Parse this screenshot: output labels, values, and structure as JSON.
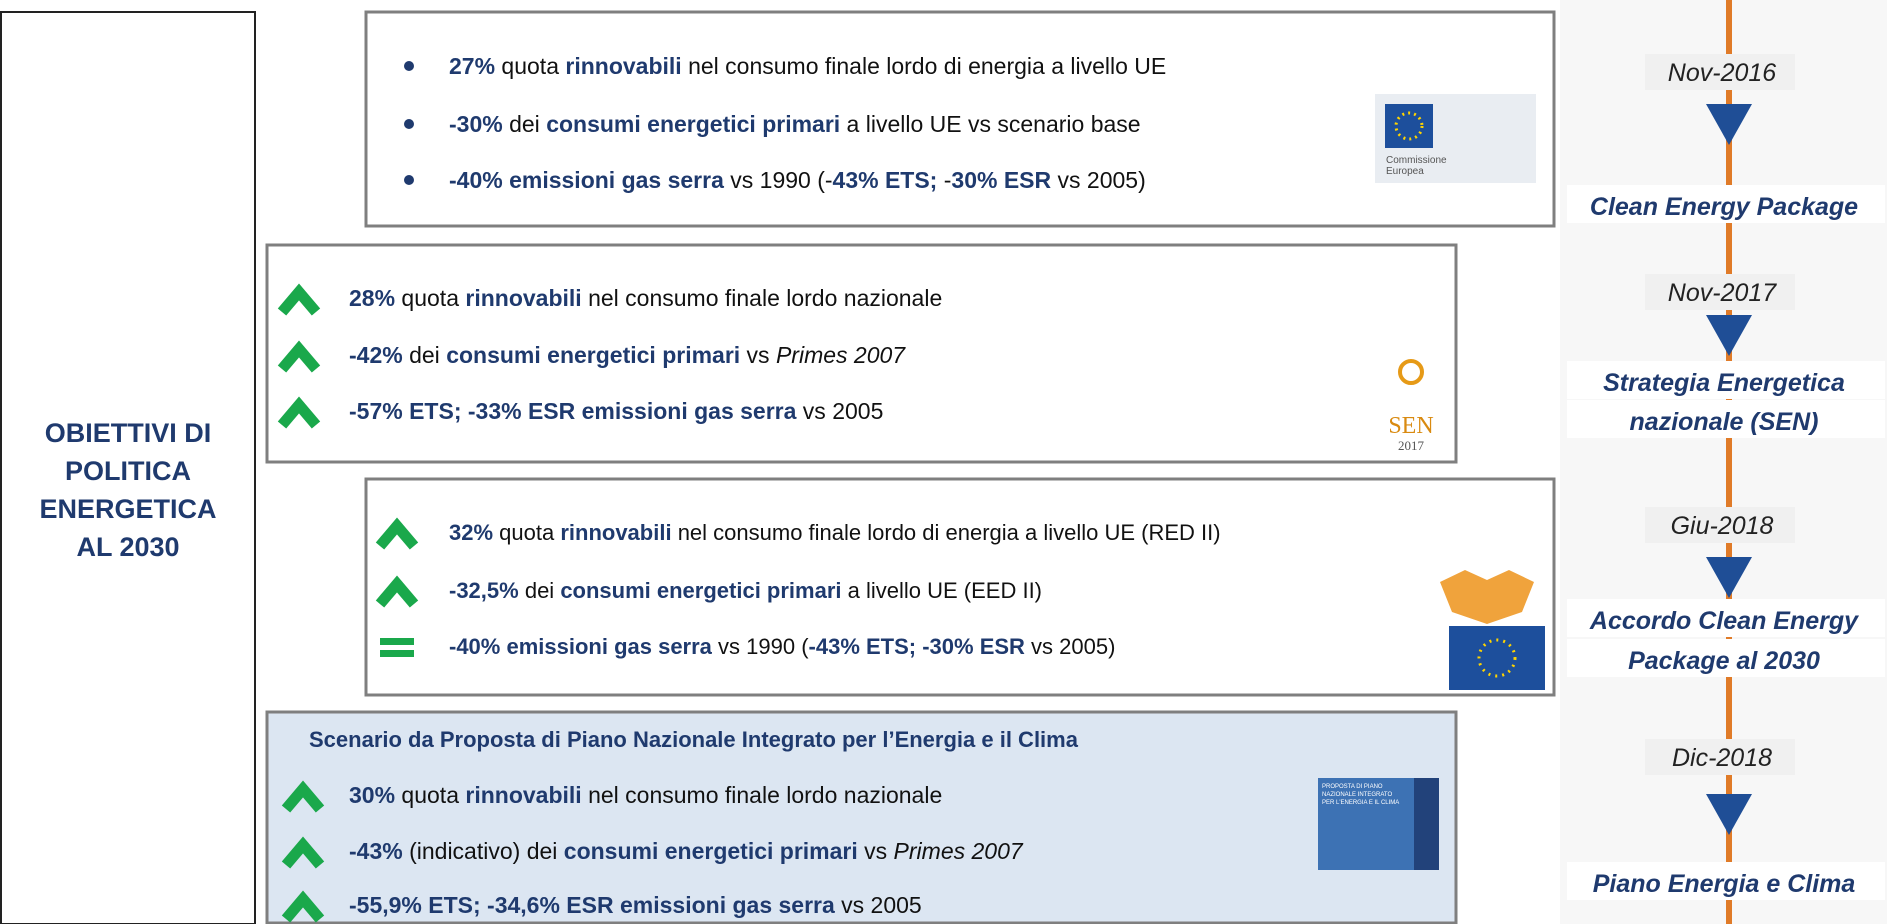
{
  "left_title": [
    "OBIETTIVI DI",
    "POLITICA",
    "ENERGETICA",
    "AL 2030"
  ],
  "boxes": [
    {
      "markers": [
        "bullet",
        "bullet",
        "bullet"
      ],
      "lines": [
        [
          {
            "text": "27%",
            "bold": true
          },
          {
            "text": " quota "
          },
          {
            "text": "rinnovabili",
            "bold": true
          },
          {
            "text": " nel consumo finale lordo di energia a livello UE"
          }
        ],
        [
          {
            "text": "-30%",
            "bold": true
          },
          {
            "text": " dei "
          },
          {
            "text": "consumi energetici primari",
            "bold": true
          },
          {
            "text": " a livello UE vs scenario base"
          }
        ],
        [
          {
            "text": "-40% emissioni gas serra",
            "bold": true
          },
          {
            "text": " vs 1990 (-"
          },
          {
            "text": "43% ETS; ",
            "bold": true
          },
          {
            "text": "-"
          },
          {
            "text": "30% ESR",
            "bold": true
          },
          {
            "text": " vs 2005)"
          }
        ]
      ]
    },
    {
      "markers": [
        "up",
        "up",
        "up"
      ],
      "lines": [
        [
          {
            "text": "28%",
            "bold": true
          },
          {
            "text": " quota "
          },
          {
            "text": "rinnovabili",
            "bold": true
          },
          {
            "text": " nel consumo finale lordo nazionale"
          }
        ],
        [
          {
            "text": "-42%",
            "bold": true
          },
          {
            "text": " dei "
          },
          {
            "text": "consumi energetici primari",
            "bold": true
          },
          {
            "text": " vs "
          },
          {
            "text": "Primes 2007",
            "italic": true
          }
        ],
        [
          {
            "text": "-57% ETS; -33% ESR emissioni gas serra",
            "bold": true
          },
          {
            "text": " vs 2005"
          }
        ]
      ]
    },
    {
      "markers": [
        "up",
        "up",
        "equal"
      ],
      "lines": [
        [
          {
            "text": "32%",
            "bold": true
          },
          {
            "text": " quota "
          },
          {
            "text": "rinnovabili",
            "bold": true
          },
          {
            "text": " nel consumo finale lordo di energia a livello UE (RED II)"
          }
        ],
        [
          {
            "text": "-32,5%",
            "bold": true
          },
          {
            "text": " dei "
          },
          {
            "text": "consumi energetici primari",
            "bold": true
          },
          {
            "text": " a livello UE (EED II)"
          }
        ],
        [
          {
            "text": "-40% emissioni gas serra",
            "bold": true
          },
          {
            "text": " vs 1990 ("
          },
          {
            "text": "-43% ETS; -30% ESR",
            "bold": true
          },
          {
            "text": " vs 2005)"
          }
        ]
      ]
    },
    {
      "heading": "Scenario da Proposta di Piano Nazionale Integrato per l’Energia e il Clima",
      "markers": [
        "up",
        "up",
        "up"
      ],
      "lines": [
        [
          {
            "text": "30%",
            "bold": true
          },
          {
            "text": " quota "
          },
          {
            "text": "rinnovabili",
            "bold": true
          },
          {
            "text": " nel consumo finale lordo nazionale"
          }
        ],
        [
          {
            "text": "-43%",
            "bold": true
          },
          {
            "text": " (indicativo) dei "
          },
          {
            "text": "consumi energetici primari",
            "bold": true
          },
          {
            "text": " vs "
          },
          {
            "text": "Primes 2007",
            "italic": true
          }
        ],
        [
          {
            "text": "-55,9% ETS; -34,6% ESR emissioni gas serra",
            "bold": true
          },
          {
            "text": " vs 2005"
          }
        ]
      ]
    }
  ],
  "logos": {
    "commission": [
      "Commissione",
      "Europea"
    ],
    "sen": [
      "SEN",
      "2017"
    ],
    "pniec": [
      "PROPOSTA DI PIANO",
      "NAZIONALE INTEGRATO",
      "PER L'ENERGIA E IL CLIMA"
    ]
  },
  "timeline": [
    {
      "date": "Nov-2016",
      "event": [
        "Clean Energy Package"
      ]
    },
    {
      "date": "Nov-2017",
      "event": [
        "Strategia Energetica",
        "nazionale (SEN)"
      ]
    },
    {
      "date": "Giu-2018",
      "event": [
        "Accordo Clean Energy",
        "Package al 2030"
      ]
    },
    {
      "date": "Dic-2018",
      "event": [
        "Piano Energia e Clima"
      ]
    }
  ]
}
